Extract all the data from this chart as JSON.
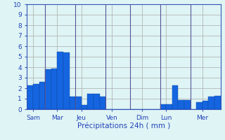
{
  "values": [
    2.3,
    2.4,
    2.6,
    3.8,
    3.9,
    5.5,
    5.4,
    1.2,
    1.2,
    0.4,
    1.5,
    1.5,
    1.2,
    0.0,
    0.0,
    0.0,
    0.0,
    0.0,
    0.0,
    0.0,
    0.0,
    0.0,
    0.5,
    0.5,
    2.3,
    0.9,
    0.9,
    0.0,
    0.7,
    0.8,
    1.2,
    1.3
  ],
  "n_total": 32,
  "day_labels": [
    "Sam",
    "Mar",
    "Jeu",
    "Ven",
    "Dim",
    "Lun",
    "Mer"
  ],
  "day_tick_positions": [
    0.5,
    4.5,
    8.5,
    13.5,
    18.5,
    22.5,
    28.5
  ],
  "day_sep_positions": [
    2.5,
    7.5,
    12.5,
    16.5,
    21.5,
    26.5
  ],
  "xlabel": "Précipitations 24h ( mm )",
  "ylim": [
    0,
    10
  ],
  "yticks": [
    0,
    1,
    2,
    3,
    4,
    5,
    6,
    7,
    8,
    9,
    10
  ],
  "bar_color": "#1565e0",
  "bar_edge_color": "#0d47a1",
  "bg_color": "#dff4f4",
  "grid_color": "#aaaaaa",
  "axis_color": "#3355bb",
  "tick_color": "#2244bb",
  "label_color": "#2244bb",
  "sep_color": "#555599"
}
